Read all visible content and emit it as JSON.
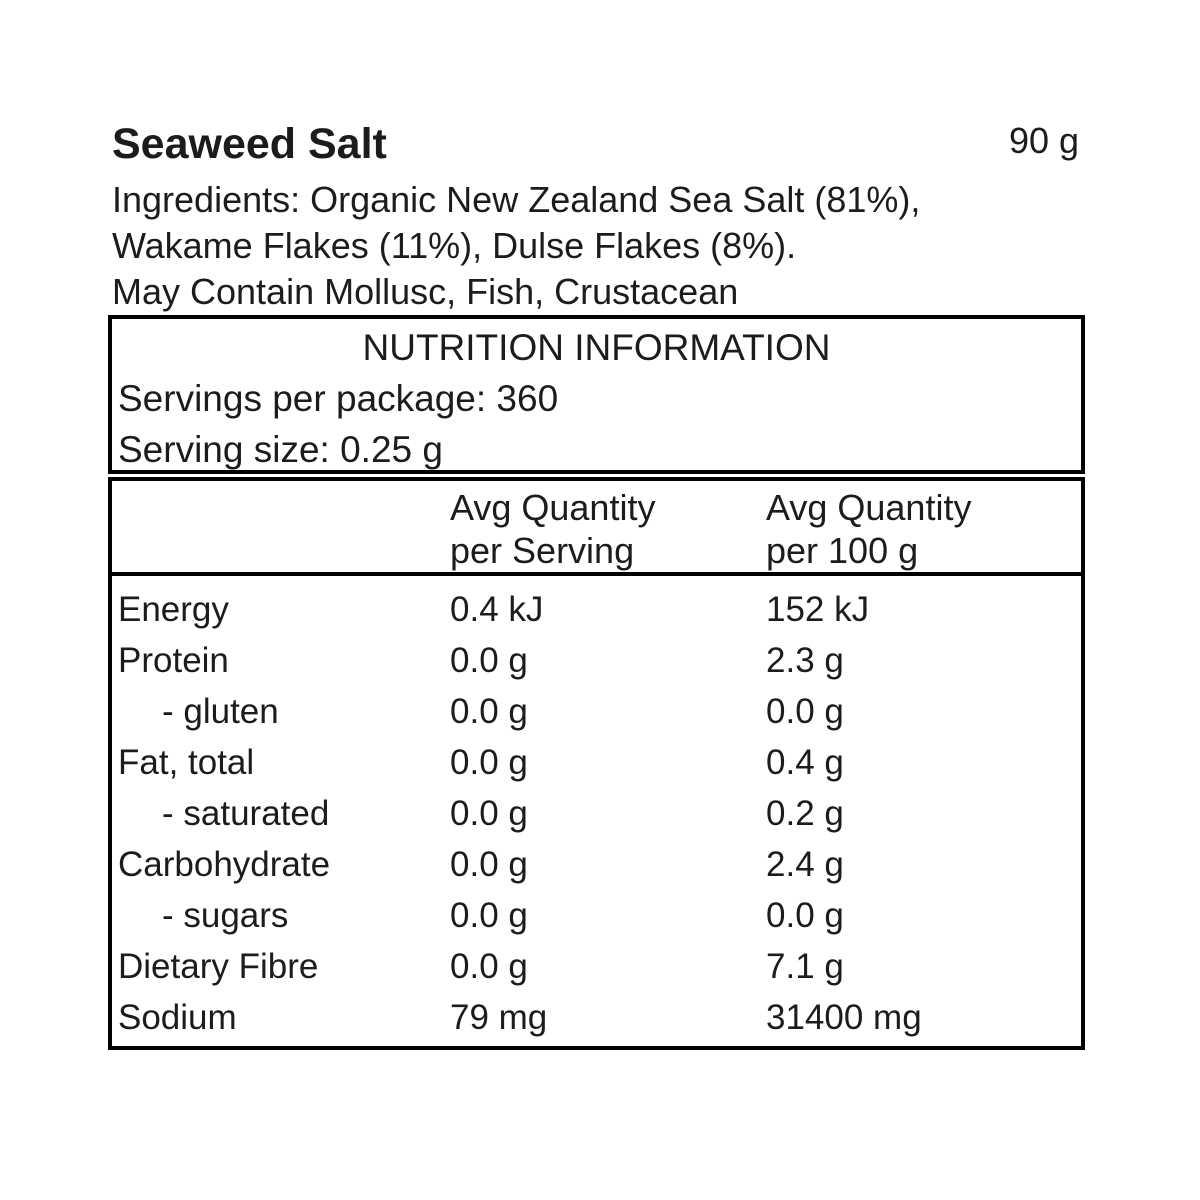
{
  "product": {
    "title": "Seaweed Salt",
    "net_weight": "90 g",
    "ingredients_lines": [
      "Ingredients: Organic New Zealand Sea Salt (81%),",
      "Wakame Flakes (11%), Dulse Flakes (8%).",
      "May Contain Mollusc, Fish, Crustacean"
    ]
  },
  "nutrition": {
    "title": "NUTRITION INFORMATION",
    "servings_per_package": "Servings per package: 360",
    "serving_size": "Serving size: 0.25 g",
    "columns": {
      "per_serving": [
        "Avg Quantity",
        "per Serving"
      ],
      "per_100g": [
        "Avg Quantity",
        "per 100 g"
      ]
    },
    "rows": [
      {
        "label": "Energy",
        "indent": false,
        "per_serving": "0.4 kJ",
        "per_100g": "152 kJ"
      },
      {
        "label": "Protein",
        "indent": false,
        "per_serving": "0.0 g",
        "per_100g": "2.3 g"
      },
      {
        "label": "- gluten",
        "indent": true,
        "per_serving": "0.0 g",
        "per_100g": "0.0 g"
      },
      {
        "label": "Fat, total",
        "indent": false,
        "per_serving": "0.0 g",
        "per_100g": "0.4 g"
      },
      {
        "label": "- saturated",
        "indent": true,
        "per_serving": "0.0 g",
        "per_100g": "0.2 g"
      },
      {
        "label": "Carbohydrate",
        "indent": false,
        "per_serving": "0.0 g",
        "per_100g": "2.4 g"
      },
      {
        "label": "- sugars",
        "indent": true,
        "per_serving": "0.0 g",
        "per_100g": "0.0 g"
      },
      {
        "label": "Dietary Fibre",
        "indent": false,
        "per_serving": "0.0 g",
        "per_100g": "7.1 g"
      },
      {
        "label": "Sodium",
        "indent": false,
        "per_serving": "79 mg",
        "per_100g": "31400 mg"
      }
    ]
  },
  "colors": {
    "background": "#ffffff",
    "text": "#1c1c1c",
    "border": "#000000"
  }
}
